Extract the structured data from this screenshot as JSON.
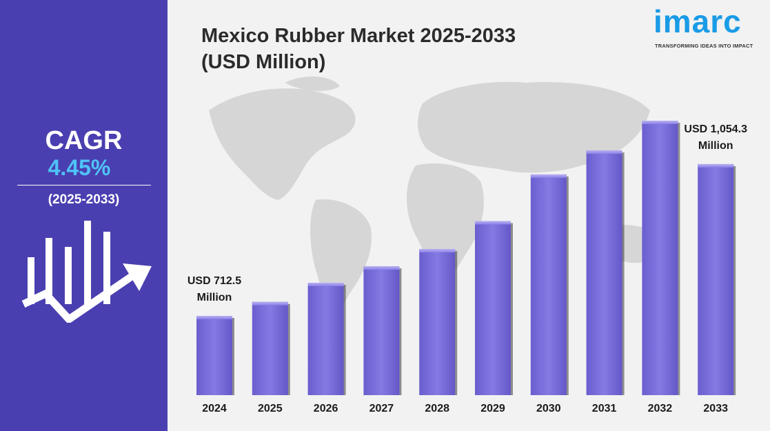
{
  "sidebar": {
    "cagr_label": "CAGR",
    "cagr_value": "4.45%",
    "cagr_period": "(2025-2033)",
    "icon": "growth-chart-arrow-icon"
  },
  "header": {
    "title_line1": "Mexico Rubber Market 2025-2033",
    "title_line2": "(USD Million)"
  },
  "logo": {
    "word": "imarc",
    "tagline": "TRANSFORMING IDEAS INTO IMPACT"
  },
  "colors": {
    "sidebar": "#4a3fb0",
    "accent": "#4fc3f7",
    "bar": "#7b6fdc",
    "logo": "#1a9be6"
  },
  "chart_data": {
    "type": "bar",
    "title": "Mexico Rubber Market 2025-2033 (USD Million)",
    "xlabel": "",
    "ylabel": "",
    "categories": [
      "2024",
      "2025",
      "2026",
      "2027",
      "2028",
      "2029",
      "2030",
      "2031",
      "2032",
      "2033"
    ],
    "values": [
      712.5,
      744,
      787,
      824,
      863,
      926,
      1031,
      1085,
      1152,
      1054.3
    ],
    "annotations": [
      {
        "category": "2024",
        "line1": "USD 712.5",
        "line2": "Million"
      },
      {
        "category": "2033",
        "line1": "USD 1,054.3",
        "line2": "Million"
      }
    ],
    "grid": false,
    "legend": "none"
  }
}
